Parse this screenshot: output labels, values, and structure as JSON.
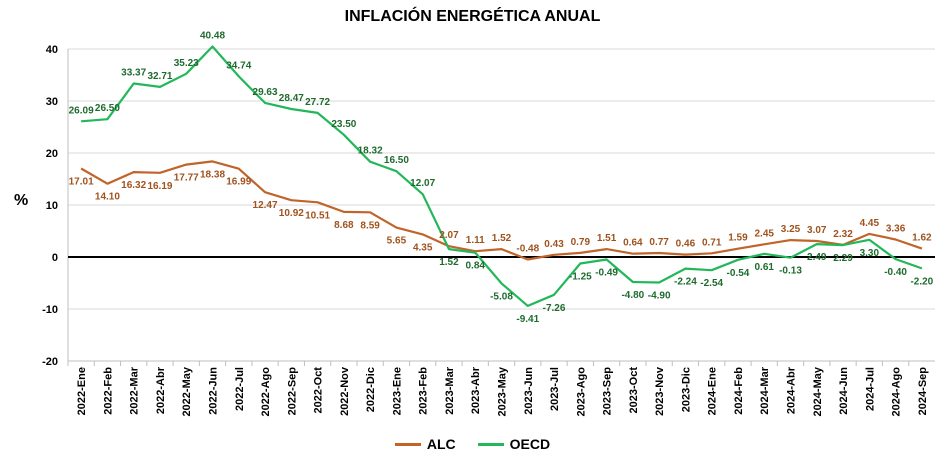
{
  "chart_data": {
    "type": "line",
    "title": "INFLACIÓN ENERGÉTICA ANUAL",
    "ylabel": "%",
    "xlabel": "",
    "ylim": [
      -20,
      40
    ],
    "yticks": [
      -20,
      -10,
      0,
      10,
      20,
      30,
      40
    ],
    "grid": true,
    "legend": "bottom-center",
    "categories": [
      "2022-Ene",
      "2022-Feb",
      "2022-Mar",
      "2022-Abr",
      "2022-May",
      "2022-Jun",
      "2022-Jul",
      "2022-Ago",
      "2022-Sep",
      "2022-Oct",
      "2022-Nov",
      "2022-Dic",
      "2023-Ene",
      "2023-Feb",
      "2023-Mar",
      "2023-Abr",
      "2023-May",
      "2023-Jun",
      "2023-Jul",
      "2023-Ago",
      "2023-Sep",
      "2023-Oct",
      "2023-Nov",
      "2023-Dic",
      "2024-Ene",
      "2024-Feb",
      "2024-Mar",
      "2024-Abr",
      "2024-May",
      "2024-Jun",
      "2024-Jul",
      "2024-Ago",
      "2024-Sep"
    ],
    "series": [
      {
        "name": "ALC",
        "color": "#C0642A",
        "values": [
          17.01,
          14.1,
          16.32,
          16.19,
          17.77,
          18.38,
          16.99,
          12.47,
          10.92,
          10.51,
          8.68,
          8.59,
          5.65,
          4.35,
          2.07,
          1.11,
          1.52,
          -0.48,
          0.43,
          0.79,
          1.51,
          0.64,
          0.77,
          0.46,
          0.71,
          1.59,
          2.45,
          3.25,
          3.07,
          2.32,
          4.45,
          3.36,
          1.62
        ],
        "labels": [
          "17.01",
          "14.10",
          "16.32",
          "16.19",
          "17.77",
          "18.38",
          "16.99",
          "12.47",
          "10.92",
          "10.51",
          "8.68",
          "8.59",
          "5.65",
          "4.35",
          "2.07",
          "1.11",
          "1.52",
          "-0.48",
          "0.43",
          "0.79",
          "1.51",
          "0.64",
          "0.77",
          "0.46",
          "0.71",
          "1.59",
          "2.45",
          "3.25",
          "3.07",
          "2.32",
          "4.45",
          "3.36",
          "1.62"
        ]
      },
      {
        "name": "OECD",
        "color": "#22B85A",
        "values": [
          26.09,
          26.5,
          33.37,
          32.71,
          35.23,
          40.48,
          34.74,
          29.63,
          28.47,
          27.72,
          23.5,
          18.32,
          16.5,
          12.07,
          1.52,
          0.84,
          -5.08,
          -9.41,
          -7.26,
          -1.25,
          -0.49,
          -4.8,
          -4.9,
          -2.24,
          -2.54,
          -0.54,
          0.61,
          -0.13,
          2.49,
          2.29,
          3.3,
          -0.4,
          -2.2
        ],
        "labels": [
          "26.09",
          "26.50",
          "33.37",
          "32.71",
          "35.23",
          "40.48",
          "34.74",
          "29.63",
          "28.47",
          "27.72",
          "23.50",
          "18.32",
          "16.50",
          "12.07",
          "1.52",
          "0.84",
          "-5.08",
          "-9.41",
          "-7.26",
          "-1.25",
          "-0.49",
          "-4.80",
          "-4.90",
          "-2.24",
          "-2.54",
          "-0.54",
          "0.61",
          "-0.13",
          "2.49",
          "2.29",
          "3.30",
          "-0.40",
          "-2.20"
        ]
      }
    ]
  }
}
